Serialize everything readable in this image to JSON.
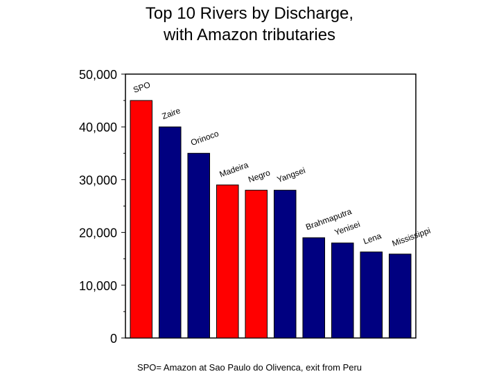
{
  "chart_data": {
    "type": "bar",
    "title": [
      "Top 10 Rivers by Discharge,",
      "with Amazon tributaries"
    ],
    "xlabel": "",
    "ylabel": "",
    "categories": [
      "SPO",
      "Zaire",
      "Orinoco",
      "Madeira",
      "Negro",
      "Yangsei",
      "Brahmaputra",
      "Yenisei",
      "Lena",
      "Mississippi"
    ],
    "values": [
      45000,
      40000,
      35000,
      29000,
      28000,
      28000,
      19000,
      18000,
      16300,
      15900
    ],
    "highlight": [
      true,
      false,
      false,
      true,
      true,
      false,
      false,
      false,
      false,
      false
    ],
    "ylim": [
      0,
      50000
    ],
    "yticks": [
      0,
      10000,
      20000,
      30000,
      40000,
      50000
    ],
    "ytick_labels": [
      "0",
      "10,000",
      "20,000",
      "30,000",
      "40,000",
      "50,000"
    ],
    "grid": false,
    "legend": "none",
    "footnote": "SPO= Amazon at Sao Paulo do Olivenca, exit from Peru"
  },
  "colors": {
    "amazon": "#ff0000",
    "other": "#000080",
    "axis": "#000000"
  }
}
